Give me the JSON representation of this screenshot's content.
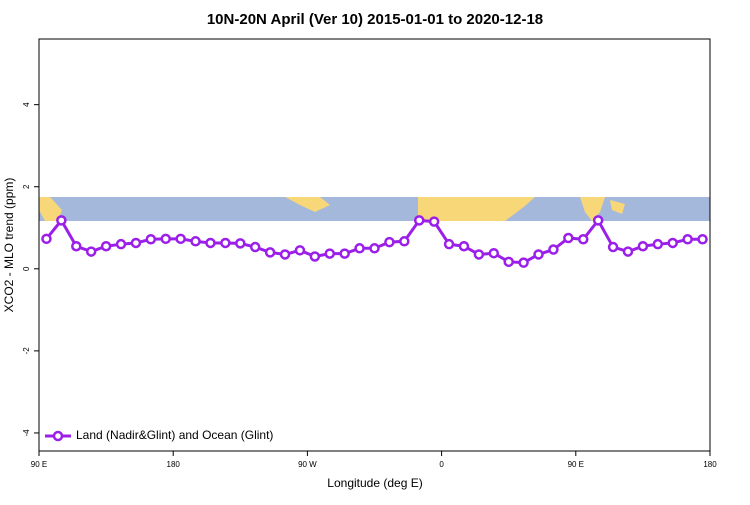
{
  "chart_data": {
    "type": "line",
    "title": "10N-20N April (Ver 10)   2015-01-01 to 2020-12-18",
    "x_label": "Longitude (deg E)",
    "y_label": "XCO2 - MLO trend (ppm)",
    "x": [
      95,
      105,
      115,
      125,
      135,
      145,
      155,
      165,
      175,
      185,
      195,
      205,
      215,
      225,
      235,
      245,
      255,
      265,
      275,
      285,
      295,
      305,
      315,
      325,
      335,
      345,
      355,
      365,
      375,
      385,
      395,
      405,
      415,
      425,
      435,
      445,
      455,
      465,
      475,
      485,
      495,
      505,
      515,
      525,
      535
    ],
    "series": [
      {
        "name": "Land (Nadir&Glint) and Ocean (Glint)",
        "color": "#9b1fe8",
        "values": [
          0.73,
          1.18,
          0.55,
          0.42,
          0.55,
          0.6,
          0.63,
          0.72,
          0.73,
          0.73,
          0.67,
          0.63,
          0.63,
          0.62,
          0.53,
          0.4,
          0.35,
          0.45,
          0.3,
          0.37,
          0.37,
          0.5,
          0.5,
          0.65,
          0.67,
          1.18,
          1.15,
          0.6,
          0.55,
          0.35,
          0.38,
          0.17,
          0.15,
          0.35,
          0.47,
          0.75,
          0.72,
          1.18,
          0.53,
          0.42,
          0.55,
          0.6,
          0.63,
          0.72,
          0.72
        ]
      }
    ],
    "xlim": [
      90,
      540
    ],
    "xticks": [
      {
        "value": 90,
        "label": "90 E"
      },
      180,
      {
        "value": 270,
        "label": "90 W"
      },
      {
        "value": 360,
        "label": "0"
      },
      {
        "value": 450,
        "label": "90 E"
      },
      {
        "value": 540,
        "label": "180"
      }
    ],
    "ylim": [
      -4.44,
      5.6
    ],
    "yticks": [
      -4,
      -2,
      0,
      2,
      4
    ],
    "legend": "bottom-left"
  }
}
